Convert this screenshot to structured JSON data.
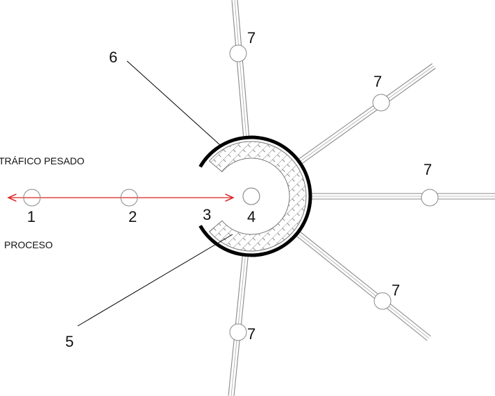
{
  "annotations": {
    "heavy_traffic": "TRÁFICO PESADO",
    "process": "PROCESO"
  },
  "markers": [
    "1",
    "2",
    "3",
    "4",
    "5",
    "6"
  ],
  "roads": [
    "7",
    "7",
    "7",
    "7",
    "7"
  ]
}
